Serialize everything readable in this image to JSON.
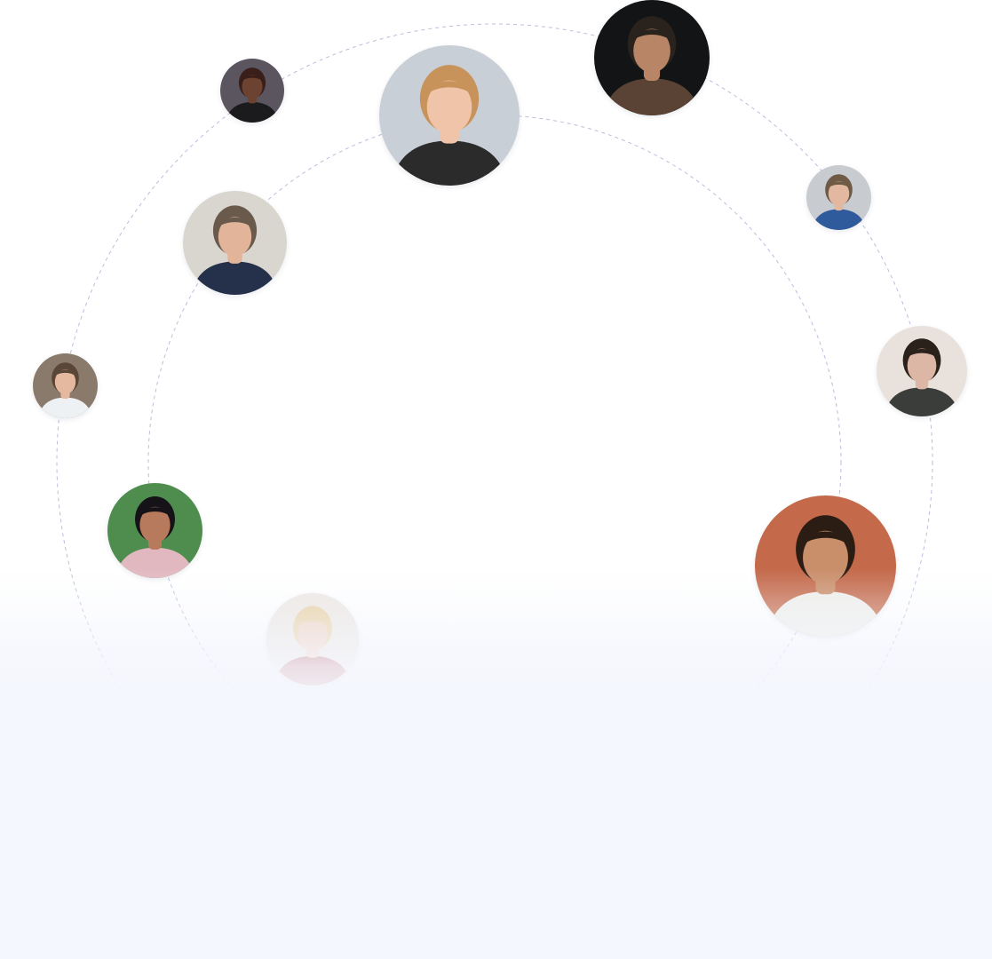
{
  "orbit_color": "#b9bfdc",
  "page_background_bottom": "#f4f7fd",
  "avatars": [
    {
      "name": "avatar-woman-black-top",
      "bg": "#5b5560",
      "skin": "#6b4330",
      "hair": "#3a1e1a",
      "shirt": "#1b1b1d"
    },
    {
      "name": "avatar-woman-blonde-center",
      "bg": "#c9cfd6",
      "skin": "#efc4a8",
      "hair": "#c8935a",
      "shirt": "#2a2b2a"
    },
    {
      "name": "avatar-man-dark-top-right",
      "bg": "#121416",
      "skin": "#b98567",
      "hair": "#2a221c",
      "shirt": "#5a4334"
    },
    {
      "name": "avatar-man-glasses-right",
      "bg": "#c8cbd0",
      "skin": "#e3b8a0",
      "hair": "#6e5a45",
      "shirt": "#2f5a9c"
    },
    {
      "name": "avatar-man-beard-right",
      "bg": "#e9e2dc",
      "skin": "#dcb7a5",
      "hair": "#2b211b",
      "shirt": "#3a3d3a"
    },
    {
      "name": "avatar-man-brick-right",
      "bg": "#c4694a",
      "skin": "#c98e6a",
      "hair": "#2c1d14",
      "shirt": "#eeeeea"
    },
    {
      "name": "avatar-man-window-left",
      "bg": "#d9d6cf",
      "skin": "#e2b49a",
      "hair": "#6a5a4c",
      "shirt": "#25304a"
    },
    {
      "name": "avatar-man-white-shirt-left",
      "bg": "#8a7a6c",
      "skin": "#e5b9a0",
      "hair": "#5a4636",
      "shirt": "#eef1f4"
    },
    {
      "name": "avatar-woman-green-left",
      "bg": "#4f8d4f",
      "skin": "#b87a5c",
      "hair": "#161318",
      "shirt": "#e2b8c0"
    },
    {
      "name": "avatar-woman-blonde-bottom",
      "bg": "#ece7e2",
      "skin": "#f0d0bf",
      "hair": "#e6cfa0",
      "shirt": "#b4545c"
    }
  ]
}
